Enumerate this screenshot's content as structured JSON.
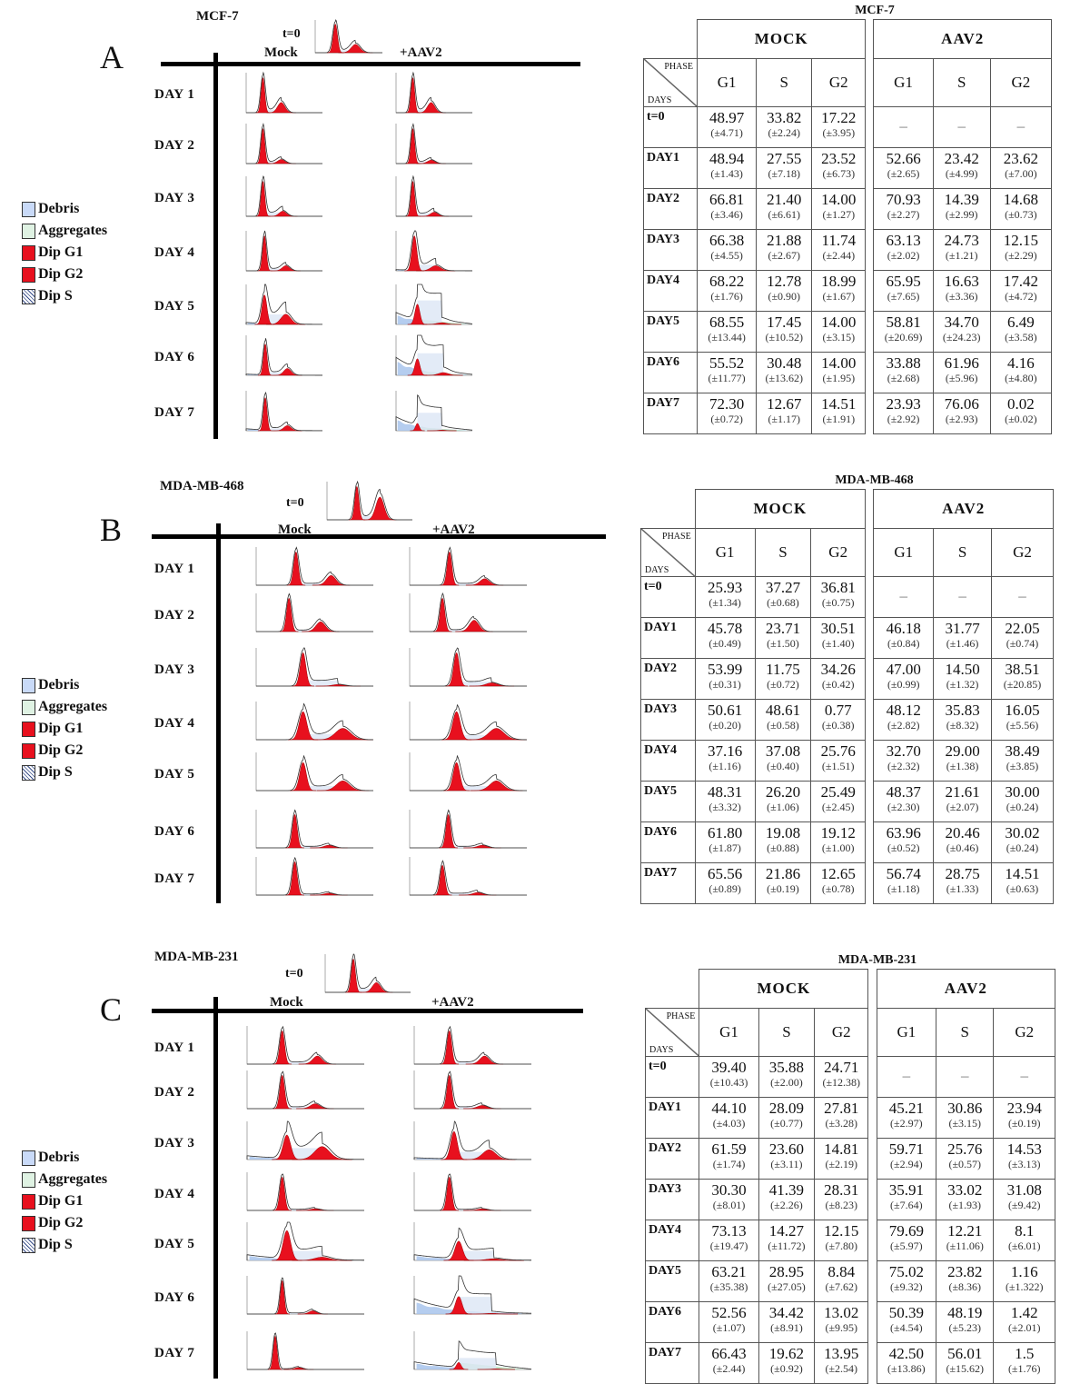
{
  "legend": [
    {
      "label": "Debris",
      "color": "#c9daf8",
      "pattern": "solid"
    },
    {
      "label": "Aggregates",
      "color": "#dff2e3",
      "pattern": "solid"
    },
    {
      "label": "Dip G1",
      "color": "#e8101e",
      "pattern": "solid"
    },
    {
      "label": "Dip G2",
      "color": "#e8101e",
      "pattern": "solid"
    },
    {
      "label": "Dip S",
      "color": "#ffffff",
      "pattern": "hatched"
    }
  ],
  "panels": [
    {
      "letter": "A",
      "cell_line": "MCF-7",
      "t0_label": "t=0",
      "mock_label": "Mock",
      "aav_label": "+AAV2",
      "day_labels": [
        "DAY 1",
        "DAY 2",
        "DAY 3",
        "DAY 4",
        "DAY 5",
        "DAY 6",
        "DAY 7"
      ],
      "table": {
        "title": "MCF-7",
        "group_headers": [
          "MOCK",
          "AAV2"
        ],
        "corner": {
          "phase": "PHASE",
          "days": "DAYS"
        },
        "phases": [
          "G1",
          "S",
          "G2"
        ],
        "rows": [
          {
            "day": "t=0",
            "mock": [
              [
                "48.97",
                "(±4.71)"
              ],
              [
                "33.82",
                "(±2.24)"
              ],
              [
                "17.22",
                "(±3.95)"
              ]
            ],
            "aav2": [
              [
                "–",
                ""
              ],
              [
                "–",
                ""
              ],
              [
                "–",
                ""
              ]
            ]
          },
          {
            "day": "DAY1",
            "mock": [
              [
                "48.94",
                "(±1.43)"
              ],
              [
                "27.55",
                "(±7.18)"
              ],
              [
                "23.52",
                "(±6.73)"
              ]
            ],
            "aav2": [
              [
                "52.66",
                "(±2.65)"
              ],
              [
                "23.42",
                "(±4.99)"
              ],
              [
                "23.62",
                "(±7.00)"
              ]
            ]
          },
          {
            "day": "DAY2",
            "mock": [
              [
                "66.81",
                "(±3.46)"
              ],
              [
                "21.40",
                "(±6.61)"
              ],
              [
                "14.00",
                "(±1.27)"
              ]
            ],
            "aav2": [
              [
                "70.93",
                "(±2.27)"
              ],
              [
                "14.39",
                "(±2.99)"
              ],
              [
                "14.68",
                "(±0.73)"
              ]
            ]
          },
          {
            "day": "DAY3",
            "mock": [
              [
                "66.38",
                "(±4.55)"
              ],
              [
                "21.88",
                "(±2.67)"
              ],
              [
                "11.74",
                "(±2.44)"
              ]
            ],
            "aav2": [
              [
                "63.13",
                "(±2.02)"
              ],
              [
                "24.73",
                "(±1.21)"
              ],
              [
                "12.15",
                "(±2.29)"
              ]
            ]
          },
          {
            "day": "DAY4",
            "mock": [
              [
                "68.22",
                "(±1.76)"
              ],
              [
                "12.78",
                "(±0.90)"
              ],
              [
                "18.99",
                "(±1.67)"
              ]
            ],
            "aav2": [
              [
                "65.95",
                "(±7.65)"
              ],
              [
                "16.63",
                "(±3.36)"
              ],
              [
                "17.42",
                "(±4.72)"
              ]
            ]
          },
          {
            "day": "DAY5",
            "mock": [
              [
                "68.55",
                "(±13.44)"
              ],
              [
                "17.45",
                "(±10.52)"
              ],
              [
                "14.00",
                "(±3.15)"
              ]
            ],
            "aav2": [
              [
                "58.81",
                "(±20.69)"
              ],
              [
                "34.70",
                "(±24.23)"
              ],
              [
                "6.49",
                "(±3.58)"
              ]
            ]
          },
          {
            "day": "DAY6",
            "mock": [
              [
                "55.52",
                "(±11.77)"
              ],
              [
                "30.48",
                "(±13.62)"
              ],
              [
                "14.00",
                "(±1.95)"
              ]
            ],
            "aav2": [
              [
                "33.88",
                "(±2.68)"
              ],
              [
                "61.96",
                "(±5.96)"
              ],
              [
                "4.16",
                "(±4.80)"
              ]
            ]
          },
          {
            "day": "DAY7",
            "mock": [
              [
                "72.30",
                "(±0.72)"
              ],
              [
                "12.67",
                "(±1.17)"
              ],
              [
                "14.51",
                "(±1.91)"
              ]
            ],
            "aav2": [
              [
                "23.93",
                "(±2.92)"
              ],
              [
                "76.06",
                "(±2.93)"
              ],
              [
                "0.02",
                "(±0.02)"
              ]
            ]
          }
        ]
      }
    },
    {
      "letter": "B",
      "cell_line": "MDA-MB-468",
      "t0_label": "t=0",
      "mock_label": "Mock",
      "aav_label": "+AAV2",
      "day_labels": [
        "DAY 1",
        "DAY 2",
        "DAY 3",
        "DAY 4",
        "DAY 5",
        "DAY 6",
        "DAY 7"
      ],
      "table": {
        "title": "MDA-MB-468",
        "group_headers": [
          "MOCK",
          "AAV2"
        ],
        "corner": {
          "phase": "PHASE",
          "days": "DAYS"
        },
        "phases": [
          "G1",
          "S",
          "G2"
        ],
        "rows": [
          {
            "day": "t=0",
            "mock": [
              [
                "25.93",
                "(±1.34)"
              ],
              [
                "37.27",
                "(±0.68)"
              ],
              [
                "36.81",
                "(±0.75)"
              ]
            ],
            "aav2": [
              [
                "–",
                ""
              ],
              [
                "–",
                ""
              ],
              [
                "–",
                ""
              ]
            ]
          },
          {
            "day": "DAY1",
            "mock": [
              [
                "45.78",
                "(±0.49)"
              ],
              [
                "23.71",
                "(±1.50)"
              ],
              [
                "30.51",
                "(±1.40)"
              ]
            ],
            "aav2": [
              [
                "46.18",
                "(±0.84)"
              ],
              [
                "31.77",
                "(±1.46)"
              ],
              [
                "22.05",
                "(±0.74)"
              ]
            ]
          },
          {
            "day": "DAY2",
            "mock": [
              [
                "53.99",
                "(±0.31)"
              ],
              [
                "11.75",
                "(±0.72)"
              ],
              [
                "34.26",
                "(±0.42)"
              ]
            ],
            "aav2": [
              [
                "47.00",
                "(±0.99)"
              ],
              [
                "14.50",
                "(±1.32)"
              ],
              [
                "38.51",
                "(±20.85)"
              ]
            ]
          },
          {
            "day": "DAY3",
            "mock": [
              [
                "50.61",
                "(±0.20)"
              ],
              [
                "48.61",
                "(±0.58)"
              ],
              [
                "0.77",
                "(±0.38)"
              ]
            ],
            "aav2": [
              [
                "48.12",
                "(±2.82)"
              ],
              [
                "35.83",
                "(±8.32)"
              ],
              [
                "16.05",
                "(±5.56)"
              ]
            ]
          },
          {
            "day": "DAY4",
            "mock": [
              [
                "37.16",
                "(±1.16)"
              ],
              [
                "37.08",
                "(±0.40)"
              ],
              [
                "25.76",
                "(±1.51)"
              ]
            ],
            "aav2": [
              [
                "32.70",
                "(±2.32)"
              ],
              [
                "29.00",
                "(±1.38)"
              ],
              [
                "38.49",
                "(±3.85)"
              ]
            ]
          },
          {
            "day": "DAY5",
            "mock": [
              [
                "48.31",
                "(±3.32)"
              ],
              [
                "26.20",
                "(±1.06)"
              ],
              [
                "25.49",
                "(±2.45)"
              ]
            ],
            "aav2": [
              [
                "48.37",
                "(±2.30)"
              ],
              [
                "21.61",
                "(±2.07)"
              ],
              [
                "30.00",
                "(±0.24)"
              ]
            ]
          },
          {
            "day": "DAY6",
            "mock": [
              [
                "61.80",
                "(±1.87)"
              ],
              [
                "19.08",
                "(±0.88)"
              ],
              [
                "19.12",
                "(±1.00)"
              ]
            ],
            "aav2": [
              [
                "63.96",
                "(±0.52)"
              ],
              [
                "20.46",
                "(±0.46)"
              ],
              [
                "30.02",
                "(±0.24)"
              ]
            ]
          },
          {
            "day": "DAY7",
            "mock": [
              [
                "65.56",
                "(±0.89)"
              ],
              [
                "21.86",
                "(±0.19)"
              ],
              [
                "12.65",
                "(±0.78)"
              ]
            ],
            "aav2": [
              [
                "56.74",
                "(±1.18)"
              ],
              [
                "28.75",
                "(±1.33)"
              ],
              [
                "14.51",
                "(±0.63)"
              ]
            ]
          }
        ]
      }
    },
    {
      "letter": "C",
      "cell_line": "MDA-MB-231",
      "t0_label": "t=0",
      "mock_label": "Mock",
      "aav_label": "+AAV2",
      "day_labels": [
        "DAY 1",
        "DAY 2",
        "DAY 3",
        "DAY 4",
        "DAY 5",
        "DAY 6",
        "DAY 7"
      ],
      "table": {
        "title": "MDA-MB-231",
        "group_headers": [
          "MOCK",
          "AAV2"
        ],
        "corner": {
          "phase": "PHASE",
          "days": "DAYS"
        },
        "phases": [
          "G1",
          "S",
          "G2"
        ],
        "rows": [
          {
            "day": "t=0",
            "mock": [
              [
                "39.40",
                "(±10.43)"
              ],
              [
                "35.88",
                "(±2.00)"
              ],
              [
                "24.71",
                "(±12.38)"
              ]
            ],
            "aav2": [
              [
                "–",
                ""
              ],
              [
                "–",
                ""
              ],
              [
                "–",
                ""
              ]
            ]
          },
          {
            "day": "DAY1",
            "mock": [
              [
                "44.10",
                "(±4.03)"
              ],
              [
                "28.09",
                "(±0.77)"
              ],
              [
                "27.81",
                "(±3.28)"
              ]
            ],
            "aav2": [
              [
                "45.21",
                "(±2.97)"
              ],
              [
                "30.86",
                "(±3.15)"
              ],
              [
                "23.94",
                "(±0.19)"
              ]
            ]
          },
          {
            "day": "DAY2",
            "mock": [
              [
                "61.59",
                "(±1.74)"
              ],
              [
                "23.60",
                "(±3.11)"
              ],
              [
                "14.81",
                "(±2.19)"
              ]
            ],
            "aav2": [
              [
                "59.71",
                "(±2.94)"
              ],
              [
                "25.76",
                "(±0.57)"
              ],
              [
                "14.53",
                "(±3.13)"
              ]
            ]
          },
          {
            "day": "DAY3",
            "mock": [
              [
                "30.30",
                "(±8.01)"
              ],
              [
                "41.39",
                "(±2.26)"
              ],
              [
                "28.31",
                "(±8.23)"
              ]
            ],
            "aav2": [
              [
                "35.91",
                "(±7.64)"
              ],
              [
                "33.02",
                "(±1.93)"
              ],
              [
                "31.08",
                "(±9.42)"
              ]
            ]
          },
          {
            "day": "DAY4",
            "mock": [
              [
                "73.13",
                "(±19.47)"
              ],
              [
                "14.27",
                "(±11.72)"
              ],
              [
                "12.15",
                "(±7.80)"
              ]
            ],
            "aav2": [
              [
                "79.69",
                "(±5.97)"
              ],
              [
                "12.21",
                "(±11.06)"
              ],
              [
                "8.1",
                "(±6.01)"
              ]
            ]
          },
          {
            "day": "DAY5",
            "mock": [
              [
                "63.21",
                "(±35.38)"
              ],
              [
                "28.95",
                "(±27.05)"
              ],
              [
                "8.84",
                "(±7.62)"
              ]
            ],
            "aav2": [
              [
                "75.02",
                "(±9.32)"
              ],
              [
                "23.82",
                "(±8.36)"
              ],
              [
                "1.16",
                "(±1.322)"
              ]
            ]
          },
          {
            "day": "DAY6",
            "mock": [
              [
                "52.56",
                "(±1.07)"
              ],
              [
                "34.42",
                "(±8.91)"
              ],
              [
                "13.02",
                "(±9.95)"
              ]
            ],
            "aav2": [
              [
                "50.39",
                "(±4.54)"
              ],
              [
                "48.19",
                "(±5.23)"
              ],
              [
                "1.42",
                "(±2.01)"
              ]
            ]
          },
          {
            "day": "DAY7",
            "mock": [
              [
                "66.43",
                "(±2.44)"
              ],
              [
                "19.62",
                "(±0.92)"
              ],
              [
                "13.95",
                "(±2.54)"
              ]
            ],
            "aav2": [
              [
                "42.50",
                "(±13.86)"
              ],
              [
                "56.01",
                "(±15.62)"
              ],
              [
                "1.5",
                "(±1.76)"
              ]
            ]
          }
        ]
      }
    }
  ]
}
